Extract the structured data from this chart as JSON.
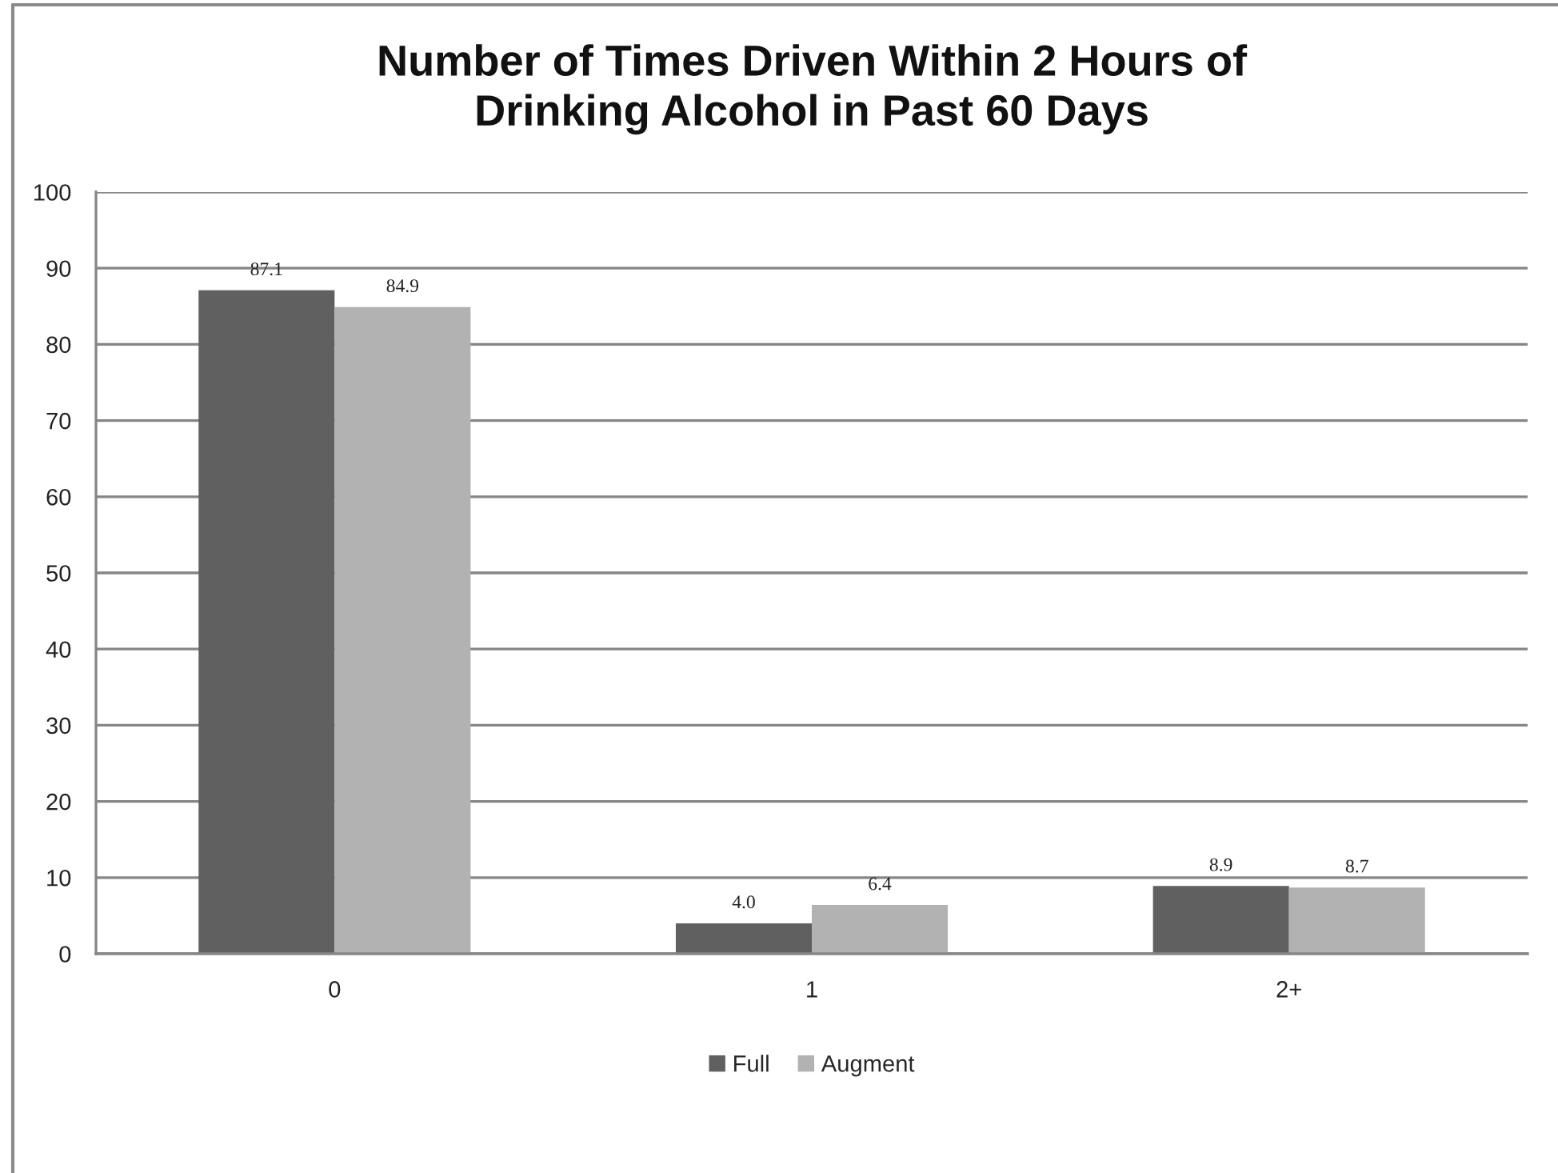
{
  "chart_data": {
    "type": "bar",
    "title": "Number of Times Driven Within 2 Hours of\nDrinking Alcohol in Past 60 Days",
    "categories": [
      "0",
      "1",
      "2+"
    ],
    "series": [
      {
        "name": "Full",
        "color": "#606060",
        "values": [
          87.1,
          4.0,
          8.9
        ],
        "value_labels": [
          "87.1",
          "4.0",
          "8.9"
        ]
      },
      {
        "name": "Augment",
        "color": "#b2b2b2",
        "values": [
          84.9,
          6.4,
          8.7
        ],
        "value_labels": [
          "84.9",
          "6.4",
          "8.7"
        ]
      }
    ],
    "ylim": [
      0,
      100
    ],
    "yticks": [
      0,
      10,
      20,
      30,
      40,
      50,
      60,
      70,
      80,
      90,
      100
    ],
    "grid": "y",
    "legend": "bottom"
  }
}
